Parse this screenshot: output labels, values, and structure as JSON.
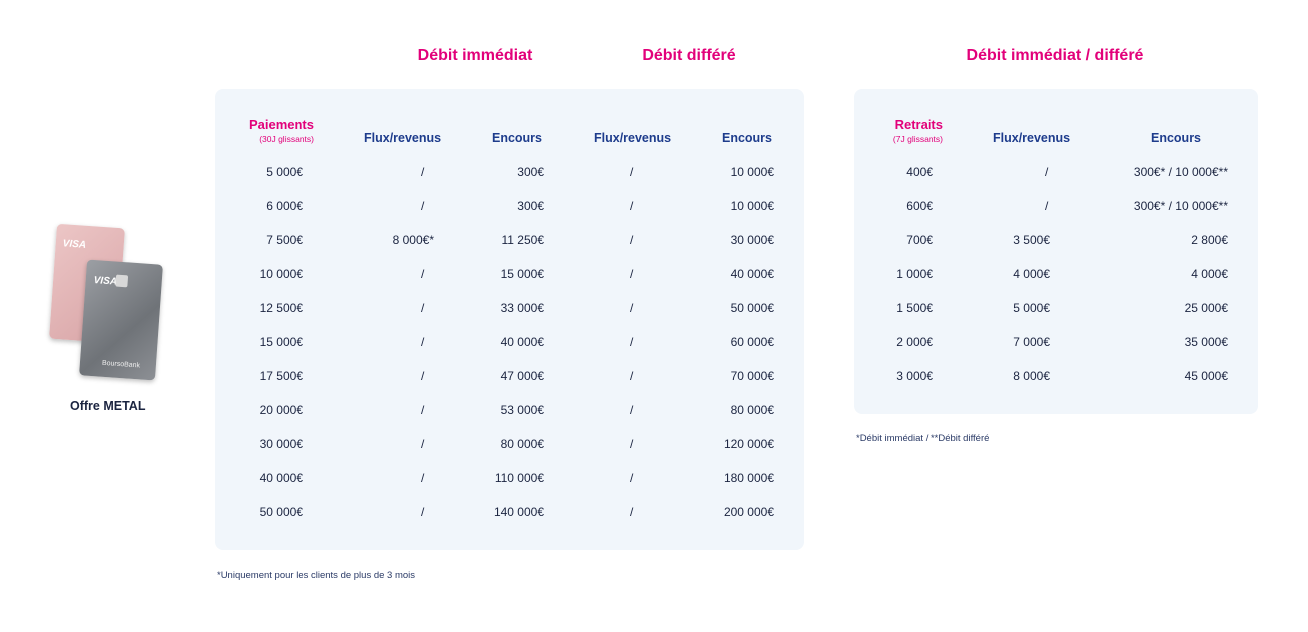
{
  "headings": {
    "immediate": "Débit immédiat",
    "deferred": "Débit différé",
    "both": "Débit immédiat / différé"
  },
  "offer": {
    "label": "Offre METAL",
    "card_brand": "VISA",
    "bank_logo": "BoursoBank"
  },
  "payments": {
    "title": "Paiements",
    "subtitle": "(30J glissants)",
    "columns": [
      "Flux/revenus",
      "Encours",
      "Flux/revenus",
      "Encours"
    ],
    "rows": [
      [
        "5 000€",
        "/",
        "300€",
        "/",
        "10 000€"
      ],
      [
        "6 000€",
        "/",
        "300€",
        "/",
        "10 000€"
      ],
      [
        "7 500€",
        "8 000€*",
        "11 250€",
        "/",
        "30 000€"
      ],
      [
        "10 000€",
        "/",
        "15 000€",
        "/",
        "40 000€"
      ],
      [
        "12 500€",
        "/",
        "33 000€",
        "/",
        "50 000€"
      ],
      [
        "15 000€",
        "/",
        "40 000€",
        "/",
        "60 000€"
      ],
      [
        "17 500€",
        "/",
        "47 000€",
        "/",
        "70 000€"
      ],
      [
        "20 000€",
        "/",
        "53 000€",
        "/",
        "80 000€"
      ],
      [
        "30 000€",
        "/",
        "80 000€",
        "/",
        "120 000€"
      ],
      [
        "40 000€",
        "/",
        "110 000€",
        "/",
        "180 000€"
      ],
      [
        "50 000€",
        "/",
        "140 000€",
        "/",
        "200 000€"
      ]
    ],
    "footnote": "*Uniquement pour les clients de plus de 3 mois"
  },
  "withdrawals": {
    "title": "Retraits",
    "subtitle": "(7J glissants)",
    "columns": [
      "Flux/revenus",
      "Encours"
    ],
    "rows": [
      [
        "400€",
        "/",
        "300€* / 10 000€**"
      ],
      [
        "600€",
        "/",
        "300€* / 10 000€**"
      ],
      [
        "700€",
        "3 500€",
        "2 800€"
      ],
      [
        "1 000€",
        "4 000€",
        "4 000€"
      ],
      [
        "1 500€",
        "5 000€",
        "25 000€"
      ],
      [
        "2 000€",
        "7 000€",
        "35 000€"
      ],
      [
        "3 000€",
        "8 000€",
        "45 000€"
      ]
    ],
    "footnote": "*Débit immédiat / **Débit différé"
  },
  "colors": {
    "accent": "#e2007a",
    "header": "#1e3c8c",
    "panel": "#f1f6fb"
  }
}
